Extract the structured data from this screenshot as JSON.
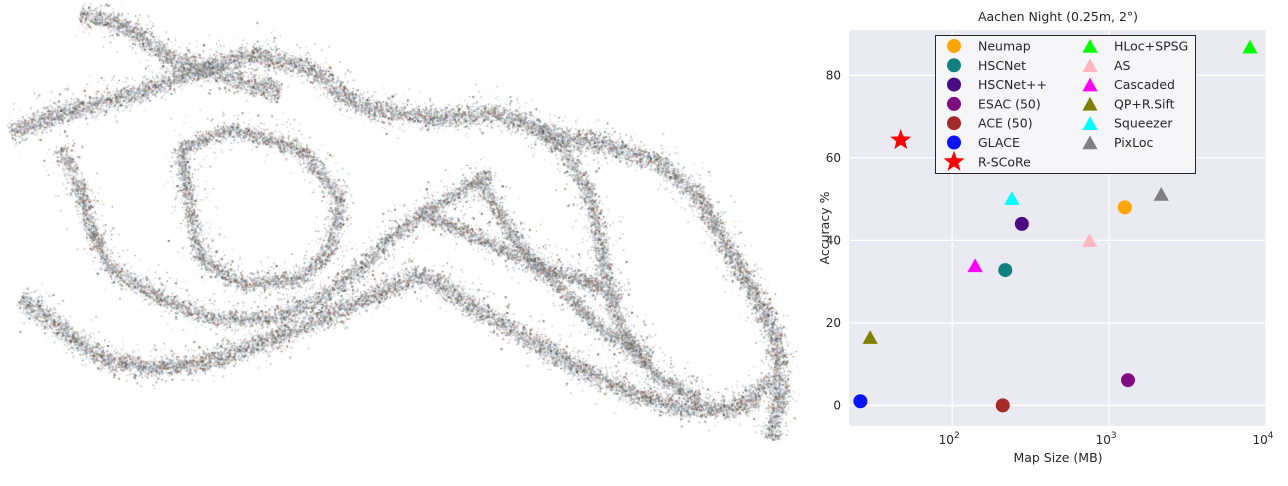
{
  "image_panel": {
    "icon": "point-cloud-reconstruction"
  },
  "chart_data": {
    "type": "scatter",
    "title": "Aachen Night (0.25m, 2°)",
    "xlabel": "Map Size (MB)",
    "ylabel": "Accuracy %",
    "xscale": "log",
    "xlim": [
      22,
      10000
    ],
    "ylim": [
      -5,
      91
    ],
    "xticks": [
      {
        "value": 100,
        "base": "10",
        "exp": "2"
      },
      {
        "value": 1000,
        "base": "10",
        "exp": "3"
      },
      {
        "value": 10000,
        "base": "10",
        "exp": "4"
      }
    ],
    "yticks": [
      0,
      20,
      40,
      60,
      80
    ],
    "grid": true,
    "background": "#eaeaf2",
    "legend_position": "top-right",
    "series": [
      {
        "name": "Neumap",
        "marker": "circle",
        "color": "#ffa500",
        "x": 1260,
        "y": 48
      },
      {
        "name": "HSCNet",
        "marker": "circle",
        "color": "#138080",
        "x": 218,
        "y": 32.8
      },
      {
        "name": "HSCNet++",
        "marker": "circle",
        "color": "#4b0a82",
        "x": 278,
        "y": 44
      },
      {
        "name": "ESAC (50)",
        "marker": "circle",
        "color": "#800c80",
        "x": 1320,
        "y": 6.1
      },
      {
        "name": "ACE (50)",
        "marker": "circle",
        "color": "#a52a2a",
        "x": 210,
        "y": 0
      },
      {
        "name": "GLACE",
        "marker": "circle",
        "color": "#0a14f5",
        "x": 26,
        "y": 1.0
      },
      {
        "name": "R-SCoRe",
        "marker": "star",
        "color": "#ff0000",
        "x": 47,
        "y": 64.3
      },
      {
        "name": "HLoc+SPSG",
        "marker": "triangle",
        "color": "#00ff00",
        "x": 7900,
        "y": 86.7
      },
      {
        "name": "AS",
        "marker": "triangle",
        "color": "#ffb6c1",
        "x": 750,
        "y": 39.8
      },
      {
        "name": "Cascaded",
        "marker": "triangle",
        "color": "#ff00ff",
        "x": 140,
        "y": 33.7
      },
      {
        "name": "QP+R.Sift",
        "marker": "triangle",
        "color": "#808000",
        "x": 30,
        "y": 16.3
      },
      {
        "name": "Squeezer",
        "marker": "triangle",
        "color": "#00ffff",
        "x": 240,
        "y": 50
      },
      {
        "name": "PixLoc",
        "marker": "triangle",
        "color": "#808080",
        "x": 2150,
        "y": 51
      }
    ]
  }
}
